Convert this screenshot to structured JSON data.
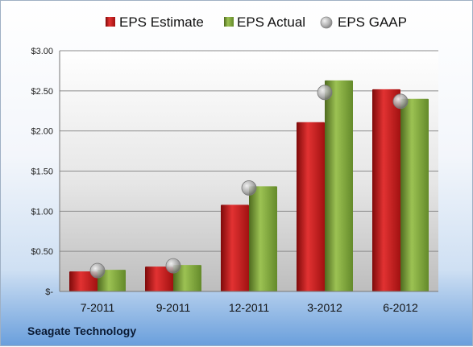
{
  "company_label": "Seagate Technology",
  "colors": {
    "estimate": "#cc1a1a",
    "actual": "#7fa83a",
    "gaap": "#a9a9a9"
  },
  "chart_data": {
    "type": "bar",
    "categories": [
      "7-2011",
      "9-2011",
      "12-2011",
      "3-2012",
      "6-2012"
    ],
    "series": [
      {
        "name": "EPS Estimate",
        "kind": "bar",
        "values": [
          0.25,
          0.31,
          1.08,
          2.11,
          2.52
        ]
      },
      {
        "name": "EPS Actual",
        "kind": "bar",
        "values": [
          0.27,
          0.33,
          1.31,
          2.63,
          2.4
        ]
      },
      {
        "name": "EPS GAAP",
        "kind": "marker",
        "values": [
          0.26,
          0.32,
          1.29,
          2.48,
          2.37
        ]
      }
    ],
    "y_ticks": [
      {
        "value": 0,
        "label": "$-"
      },
      {
        "value": 0.5,
        "label": "$0.50"
      },
      {
        "value": 1.0,
        "label": "$1.00"
      },
      {
        "value": 1.5,
        "label": "$1.50"
      },
      {
        "value": 2.0,
        "label": "$2.00"
      },
      {
        "value": 2.5,
        "label": "$2.50"
      },
      {
        "value": 3.0,
        "label": "$3.00"
      }
    ],
    "ylim": [
      0,
      3.0
    ],
    "grid": true,
    "legend_position": "top"
  }
}
